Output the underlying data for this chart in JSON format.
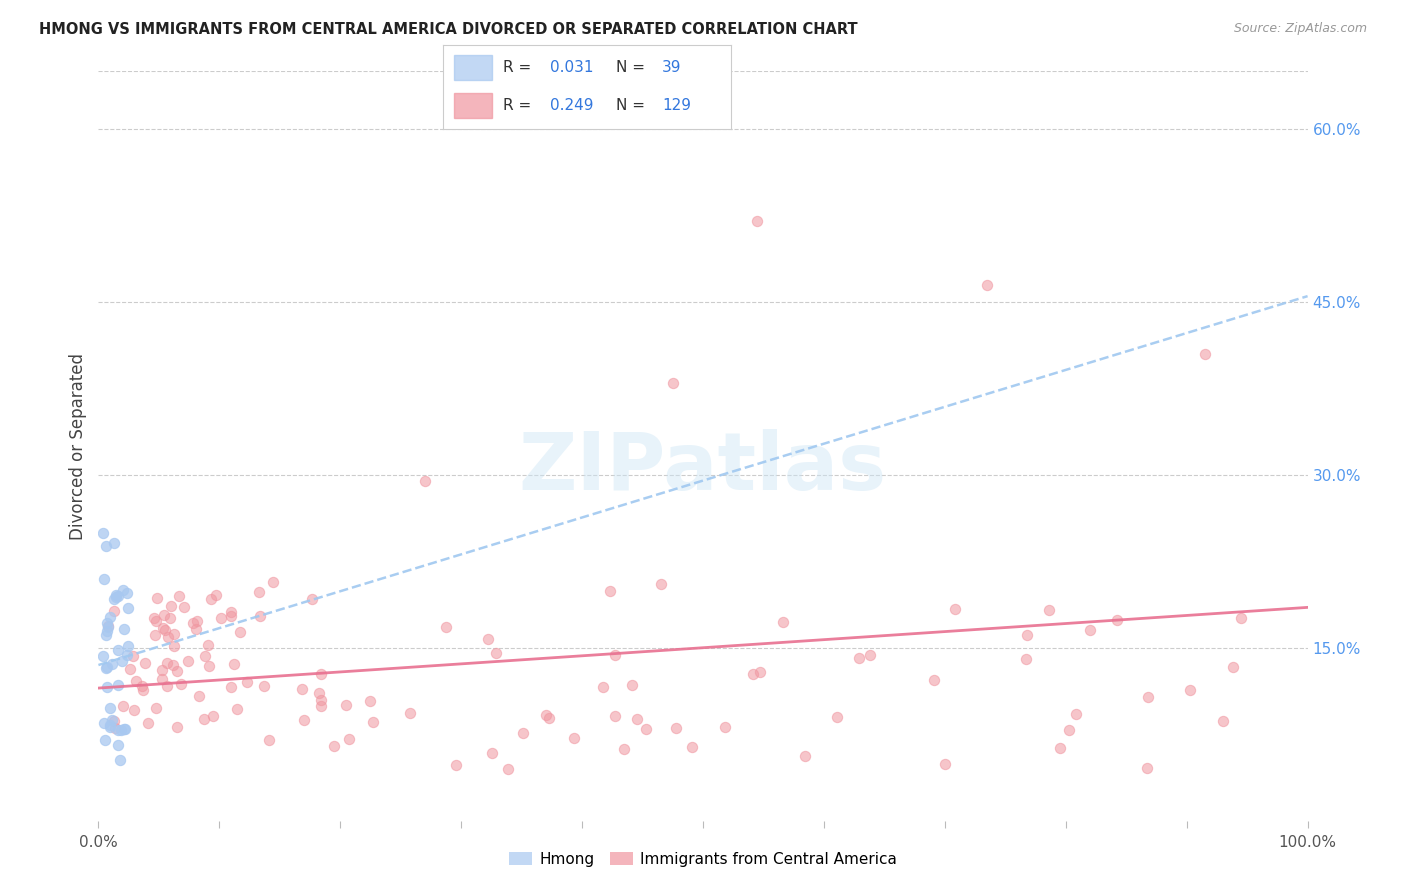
{
  "title": "HMONG VS IMMIGRANTS FROM CENTRAL AMERICA DIVORCED OR SEPARATED CORRELATION CHART",
  "source": "Source: ZipAtlas.com",
  "ylabel": "Divorced or Separated",
  "xlim": [
    0,
    1.0
  ],
  "ylim": [
    0,
    0.65
  ],
  "ytick_positions": [
    0.15,
    0.3,
    0.45,
    0.6
  ],
  "ytick_labels": [
    "15.0%",
    "30.0%",
    "45.0%",
    "60.0%"
  ],
  "legend_r_hmong": "0.031",
  "legend_n_hmong": "39",
  "legend_r_ca": "0.249",
  "legend_n_ca": "129",
  "hmong_color": "#A8C8F0",
  "ca_color": "#F096A0",
  "trendline_hmong_color": "#A0C8F0",
  "trendline_ca_color": "#E87090",
  "watermark": "ZIPatlas",
  "hmong_trendline": [
    0.135,
    0.455
  ],
  "ca_trendline": [
    0.115,
    0.185
  ]
}
